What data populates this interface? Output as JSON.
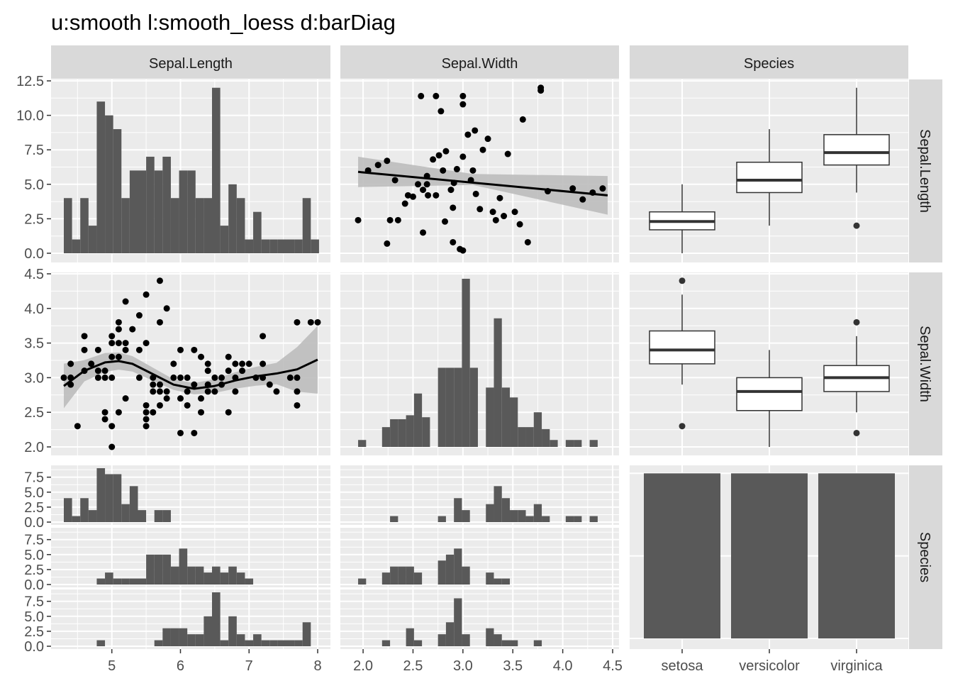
{
  "title": "u:smooth l:smooth_loess d:barDiag",
  "strips": {
    "columns": [
      "Sepal.Length",
      "Sepal.Width",
      "Species"
    ],
    "rows": [
      "Sepal.Length",
      "Sepal.Width",
      "Species"
    ]
  },
  "colors": {
    "panel_bg": "#ebebeb",
    "grid_major": "#ffffff",
    "strip_bg": "#d9d9d9",
    "bar_fill": "#595959",
    "point": "#000000",
    "ribbon": "#bdbdbd",
    "box_fill": "#ffffff",
    "box_line": "#333333"
  },
  "chart_data": [
    {
      "type": "bar",
      "panel": "row1-col1",
      "description_axes": "x: Sepal.Length, y: count",
      "x_bins_left": [
        4.3,
        4.42,
        4.54,
        4.66,
        4.78,
        4.9,
        5.02,
        5.14,
        5.26,
        5.38,
        5.5,
        5.62,
        5.74,
        5.86,
        5.98,
        6.1,
        6.22,
        6.34,
        6.46,
        6.58,
        6.7,
        6.82,
        6.94,
        7.06,
        7.18,
        7.3,
        7.42,
        7.54,
        7.66,
        7.78,
        7.9
      ],
      "bin_width": 0.12,
      "values": [
        4,
        1,
        4,
        2,
        11,
        10,
        9,
        4,
        6,
        6,
        7,
        6,
        7,
        4,
        6,
        6,
        4,
        4,
        12,
        2,
        5,
        4,
        1,
        3,
        1,
        1,
        1,
        1,
        1,
        4,
        1
      ],
      "xlim": [
        4.3,
        8.0
      ],
      "ylim": [
        0,
        12.5
      ],
      "y_ticks": [
        "0.0",
        "2.5",
        "5.0",
        "7.5",
        "10.0",
        "12.5"
      ]
    },
    {
      "type": "scatter",
      "panel": "row1-col2",
      "description_axes": "x: Sepal.Width, y: Sepal.Length scaled to count axis",
      "smooth": "lm",
      "points": [
        [
          1.95,
          2.4
        ],
        [
          2.24,
          0.7
        ],
        [
          2.27,
          2.4
        ],
        [
          2.35,
          2.4
        ],
        [
          2.05,
          6.0
        ],
        [
          2.15,
          6.4
        ],
        [
          2.24,
          6.7
        ],
        [
          2.32,
          5.3
        ],
        [
          2.42,
          3.6
        ],
        [
          2.45,
          4.2
        ],
        [
          2.5,
          4.1
        ],
        [
          2.55,
          5.0
        ],
        [
          2.58,
          11.4
        ],
        [
          2.64,
          5.6
        ],
        [
          2.64,
          5.0
        ],
        [
          2.65,
          4.2
        ],
        [
          2.73,
          4.2
        ],
        [
          2.73,
          11.4
        ],
        [
          2.78,
          10.3
        ],
        [
          2.76,
          7.1
        ],
        [
          2.83,
          7.4
        ],
        [
          2.88,
          4.6
        ],
        [
          2.91,
          5.1
        ],
        [
          2.94,
          6.1
        ],
        [
          3.0,
          11.4
        ],
        [
          3.0,
          10.8
        ],
        [
          3.05,
          8.6
        ],
        [
          3.08,
          5.3
        ],
        [
          3.12,
          8.9
        ],
        [
          3.13,
          4.3
        ],
        [
          3.17,
          3.2
        ],
        [
          3.25,
          8.3
        ],
        [
          3.3,
          3.0
        ],
        [
          3.33,
          2.4
        ],
        [
          3.37,
          4.0
        ],
        [
          3.41,
          2.7
        ],
        [
          3.45,
          7.2
        ],
        [
          3.52,
          3.0
        ],
        [
          3.57,
          2.1
        ],
        [
          3.6,
          9.7
        ],
        [
          3.65,
          0.8
        ],
        [
          3.78,
          11.8
        ],
        [
          3.78,
          12.0
        ],
        [
          3.85,
          4.5
        ],
        [
          4.2,
          3.9
        ],
        [
          4.3,
          4.4
        ],
        [
          4.4,
          4.7
        ],
        [
          4.1,
          4.7
        ],
        [
          2.82,
          2.3
        ],
        [
          2.9,
          0.8
        ],
        [
          2.97,
          0.3
        ],
        [
          3.0,
          0.2
        ],
        [
          2.6,
          1.5
        ],
        [
          2.9,
          3.3
        ],
        [
          3.1,
          6.0
        ],
        [
          3.2,
          7.5
        ],
        [
          3.0,
          7.0
        ],
        [
          2.8,
          6.0
        ],
        [
          2.7,
          6.8
        ],
        [
          2.6,
          4.6
        ]
      ],
      "fit_line": [
        [
          1.95,
          5.9
        ],
        [
          4.45,
          4.2
        ]
      ],
      "xlim": [
        1.9,
        4.5
      ],
      "ylim": [
        0,
        12.5
      ]
    },
    {
      "type": "box",
      "panel": "row1-col3",
      "description_axes": "x: Species, y: Sepal.Length scaled to count axis",
      "categories": [
        "setosa",
        "versicolor",
        "virginica"
      ],
      "boxes": [
        {
          "min": 0.0,
          "q1": 1.7,
          "median": 2.3,
          "q3": 3.0,
          "max": 5.0,
          "outliers": []
        },
        {
          "min": 2.0,
          "q1": 4.4,
          "median": 5.3,
          "q3": 6.6,
          "max": 9.0,
          "outliers": []
        },
        {
          "min": 4.4,
          "q1": 6.4,
          "median": 7.3,
          "q3": 8.6,
          "max": 12.0,
          "outliers": [
            2.0
          ]
        }
      ],
      "ylim": [
        0,
        12.5
      ]
    },
    {
      "type": "scatter",
      "panel": "row2-col1",
      "description_axes": "x: Sepal.Length, y: Sepal.Width",
      "smooth": "loess",
      "points": [
        [
          4.3,
          3.0
        ],
        [
          4.4,
          2.9
        ],
        [
          4.4,
          3.0
        ],
        [
          4.4,
          3.2
        ],
        [
          4.5,
          2.3
        ],
        [
          4.6,
          3.1
        ],
        [
          4.6,
          3.4
        ],
        [
          4.6,
          3.6
        ],
        [
          4.7,
          3.2
        ],
        [
          4.8,
          3.0
        ],
        [
          4.8,
          3.4
        ],
        [
          4.8,
          3.1
        ],
        [
          4.9,
          3.0
        ],
        [
          4.9,
          2.4
        ],
        [
          4.9,
          2.5
        ],
        [
          4.9,
          3.1
        ],
        [
          5.0,
          3.0
        ],
        [
          5.0,
          3.3
        ],
        [
          5.0,
          3.5
        ],
        [
          5.0,
          3.6
        ],
        [
          5.0,
          2.0
        ],
        [
          5.0,
          2.3
        ],
        [
          5.1,
          3.5
        ],
        [
          5.1,
          3.8
        ],
        [
          5.1,
          3.7
        ],
        [
          5.1,
          3.3
        ],
        [
          5.1,
          2.5
        ],
        [
          5.2,
          3.5
        ],
        [
          5.2,
          4.1
        ],
        [
          5.2,
          3.4
        ],
        [
          5.2,
          2.7
        ],
        [
          5.3,
          3.7
        ],
        [
          5.4,
          3.9
        ],
        [
          5.4,
          3.4
        ],
        [
          5.4,
          3.0
        ],
        [
          5.5,
          4.2
        ],
        [
          5.5,
          2.3
        ],
        [
          5.5,
          2.4
        ],
        [
          5.5,
          2.5
        ],
        [
          5.5,
          2.6
        ],
        [
          5.5,
          3.5
        ],
        [
          5.6,
          2.5
        ],
        [
          5.6,
          2.9
        ],
        [
          5.6,
          3.0
        ],
        [
          5.6,
          2.8
        ],
        [
          5.7,
          4.4
        ],
        [
          5.7,
          3.8
        ],
        [
          5.7,
          2.8
        ],
        [
          5.7,
          2.6
        ],
        [
          5.7,
          2.9
        ],
        [
          5.8,
          4.0
        ],
        [
          5.8,
          2.7
        ],
        [
          5.8,
          2.8
        ],
        [
          5.9,
          3.0
        ],
        [
          5.9,
          3.2
        ],
        [
          6.0,
          2.2
        ],
        [
          6.0,
          2.7
        ],
        [
          6.0,
          3.0
        ],
        [
          6.0,
          3.4
        ],
        [
          6.1,
          2.8
        ],
        [
          6.1,
          3.0
        ],
        [
          6.1,
          2.6
        ],
        [
          6.2,
          2.2
        ],
        [
          6.2,
          2.9
        ],
        [
          6.2,
          3.4
        ],
        [
          6.3,
          2.5
        ],
        [
          6.3,
          3.3
        ],
        [
          6.3,
          2.7
        ],
        [
          6.4,
          2.8
        ],
        [
          6.4,
          3.2
        ],
        [
          6.4,
          2.9
        ],
        [
          6.4,
          3.1
        ],
        [
          6.5,
          3.0
        ],
        [
          6.5,
          2.8
        ],
        [
          6.6,
          2.9
        ],
        [
          6.6,
          3.0
        ],
        [
          6.7,
          3.1
        ],
        [
          6.7,
          2.5
        ],
        [
          6.7,
          3.3
        ],
        [
          6.8,
          2.8
        ],
        [
          6.8,
          3.0
        ],
        [
          6.8,
          3.2
        ],
        [
          6.9,
          3.1
        ],
        [
          6.9,
          3.2
        ],
        [
          7.0,
          3.2
        ],
        [
          7.1,
          3.0
        ],
        [
          7.2,
          3.6
        ],
        [
          7.2,
          3.2
        ],
        [
          7.2,
          3.0
        ],
        [
          7.3,
          2.9
        ],
        [
          7.4,
          2.8
        ],
        [
          7.6,
          3.0
        ],
        [
          7.7,
          3.8
        ],
        [
          7.7,
          2.6
        ],
        [
          7.7,
          3.0
        ],
        [
          7.7,
          2.8
        ],
        [
          7.9,
          3.8
        ],
        [
          8.0,
          3.8
        ]
      ],
      "fit_line": [
        [
          4.3,
          2.88
        ],
        [
          4.6,
          3.1
        ],
        [
          4.9,
          3.22
        ],
        [
          5.1,
          3.24
        ],
        [
          5.3,
          3.2
        ],
        [
          5.6,
          3.05
        ],
        [
          5.9,
          2.9
        ],
        [
          6.2,
          2.84
        ],
        [
          6.5,
          2.88
        ],
        [
          6.8,
          2.96
        ],
        [
          7.1,
          3.02
        ],
        [
          7.4,
          3.06
        ],
        [
          7.7,
          3.12
        ],
        [
          8.0,
          3.26
        ]
      ],
      "xlim": [
        4.3,
        8.0
      ],
      "ylim": [
        2.0,
        4.4
      ],
      "y_ticks": [
        "2.0",
        "2.5",
        "3.0",
        "3.5",
        "4.0",
        "4.5"
      ]
    },
    {
      "type": "bar",
      "panel": "row2-col2",
      "description_axes": "x: Sepal.Width, y: count",
      "x_bins_left": [
        1.95,
        2.03,
        2.11,
        2.19,
        2.27,
        2.35,
        2.43,
        2.51,
        2.59,
        2.67,
        2.75,
        2.83,
        2.91,
        2.99,
        3.07,
        3.15,
        3.23,
        3.31,
        3.39,
        3.47,
        3.55,
        3.63,
        3.71,
        3.79,
        3.87,
        3.95,
        4.03,
        4.11,
        4.19,
        4.27,
        4.35
      ],
      "bin_width": 0.08,
      "values": [
        0.7,
        0,
        0,
        2.0,
        2.8,
        2.8,
        3.2,
        5.4,
        3.0,
        0,
        8.0,
        8.0,
        8.0,
        17.0,
        8.0,
        0,
        6.0,
        13.0,
        6.0,
        5.0,
        2.0,
        2.0,
        3.5,
        1.8,
        0.7,
        0,
        0.7,
        0.7,
        0,
        0.7,
        0
      ],
      "xlim": [
        1.9,
        4.5
      ]
    },
    {
      "type": "box",
      "panel": "row2-col3",
      "description_axes": "x: Species, y: Sepal.Width",
      "categories": [
        "setosa",
        "versicolor",
        "virginica"
      ],
      "boxes": [
        {
          "min": 2.9,
          "q1": 3.2,
          "median": 3.4,
          "q3": 3.675,
          "max": 4.2,
          "outliers": [
            2.3,
            4.4
          ]
        },
        {
          "min": 2.0,
          "q1": 2.525,
          "median": 2.8,
          "q3": 3.0,
          "max": 3.4,
          "outliers": []
        },
        {
          "min": 2.5,
          "q1": 2.8,
          "median": 3.0,
          "q3": 3.175,
          "max": 3.6,
          "outliers": [
            2.2,
            3.8
          ]
        }
      ],
      "ylim": [
        2.0,
        4.4
      ]
    },
    {
      "type": "bar",
      "panel": "row3-col1",
      "description_axes": "x: Sepal.Length, y: count, faceted by Species (setosa, versicolor, virginica)",
      "x_bins_left": [
        4.3,
        4.42,
        4.54,
        4.66,
        4.78,
        4.9,
        5.02,
        5.14,
        5.26,
        5.38,
        5.5,
        5.62,
        5.74,
        5.86,
        5.98,
        6.1,
        6.22,
        6.34,
        6.46,
        6.58,
        6.7,
        6.82,
        6.94,
        7.06,
        7.18,
        7.3,
        7.42,
        7.54,
        7.66,
        7.78,
        7.9
      ],
      "bin_width": 0.12,
      "series": [
        {
          "name": "setosa",
          "values": [
            4,
            1,
            4,
            2,
            9,
            8,
            8,
            3,
            6,
            2,
            0,
            2,
            2,
            0,
            0,
            0,
            0,
            0,
            0,
            0,
            0,
            0,
            0,
            0,
            0,
            0,
            0,
            0,
            0,
            0,
            0
          ]
        },
        {
          "name": "versicolor",
          "values": [
            0,
            0,
            0,
            0,
            1,
            2,
            1,
            1,
            1,
            1,
            5,
            5,
            5,
            3,
            6,
            3,
            3,
            2,
            3,
            2,
            3,
            2,
            1,
            0,
            0,
            0,
            0,
            0,
            0,
            0,
            0
          ]
        },
        {
          "name": "virginica",
          "values": [
            0,
            0,
            0,
            0,
            1,
            0,
            0,
            0,
            0,
            0,
            0,
            1,
            3,
            3,
            3,
            2,
            2,
            5,
            9,
            1,
            5,
            2,
            1,
            2,
            1,
            1,
            1,
            1,
            1,
            4,
            0
          ]
        }
      ],
      "xlim": [
        4.3,
        8.0
      ],
      "ylim": [
        0,
        9
      ],
      "y_ticks": [
        "0.0",
        "2.5",
        "5.0",
        "7.5"
      ]
    },
    {
      "type": "bar",
      "panel": "row3-col2",
      "description_axes": "x: Sepal.Width, y: count, faceted by Species (setosa, versicolor, virginica)",
      "x_bins_left": [
        1.95,
        2.03,
        2.11,
        2.19,
        2.27,
        2.35,
        2.43,
        2.51,
        2.59,
        2.67,
        2.75,
        2.83,
        2.91,
        2.99,
        3.07,
        3.15,
        3.23,
        3.31,
        3.39,
        3.47,
        3.55,
        3.63,
        3.71,
        3.79,
        3.87,
        3.95,
        4.03,
        4.11,
        4.19,
        4.27,
        4.35
      ],
      "bin_width": 0.08,
      "series": [
        {
          "name": "setosa",
          "values": [
            0,
            0,
            0,
            0,
            1,
            0,
            0,
            0,
            0,
            0,
            1,
            0,
            4,
            2,
            0,
            0,
            3,
            6,
            4,
            2,
            2,
            1,
            3,
            1,
            0,
            0,
            1,
            1,
            0,
            1,
            0
          ]
        },
        {
          "name": "versicolor",
          "values": [
            1,
            0,
            0,
            2,
            3,
            3,
            3,
            2,
            0,
            0,
            4,
            5,
            6,
            3,
            0,
            0,
            2,
            1,
            1,
            0,
            0,
            0,
            0,
            0,
            0,
            0,
            0,
            0,
            0,
            0,
            0
          ]
        },
        {
          "name": "virginica",
          "values": [
            0,
            0,
            0,
            1,
            0,
            0,
            3,
            1,
            0,
            0,
            2,
            4,
            8,
            2,
            0,
            0,
            3,
            2,
            1,
            1,
            0,
            0,
            1,
            0,
            0,
            0,
            0,
            0,
            0,
            0,
            0
          ]
        }
      ],
      "xlim": [
        1.9,
        4.5
      ],
      "ylim": [
        0,
        9
      ],
      "x_ticks": [
        "2.0",
        "2.5",
        "3.0",
        "3.5",
        "4.0",
        "4.5"
      ]
    },
    {
      "type": "bar",
      "panel": "row3-col3",
      "description_axes": "x: Species, y: count",
      "categories": [
        "setosa",
        "versicolor",
        "virginica"
      ],
      "values": [
        50,
        50,
        50
      ],
      "ylim": [
        0,
        52
      ]
    }
  ],
  "axes": {
    "col1_x_ticks": [
      "5",
      "6",
      "7",
      "8"
    ],
    "col2_x_ticks": [
      "2.0",
      "2.5",
      "3.0",
      "3.5",
      "4.0",
      "4.5"
    ],
    "col3_x_ticks": [
      "setosa",
      "versicolor",
      "virginica"
    ]
  }
}
